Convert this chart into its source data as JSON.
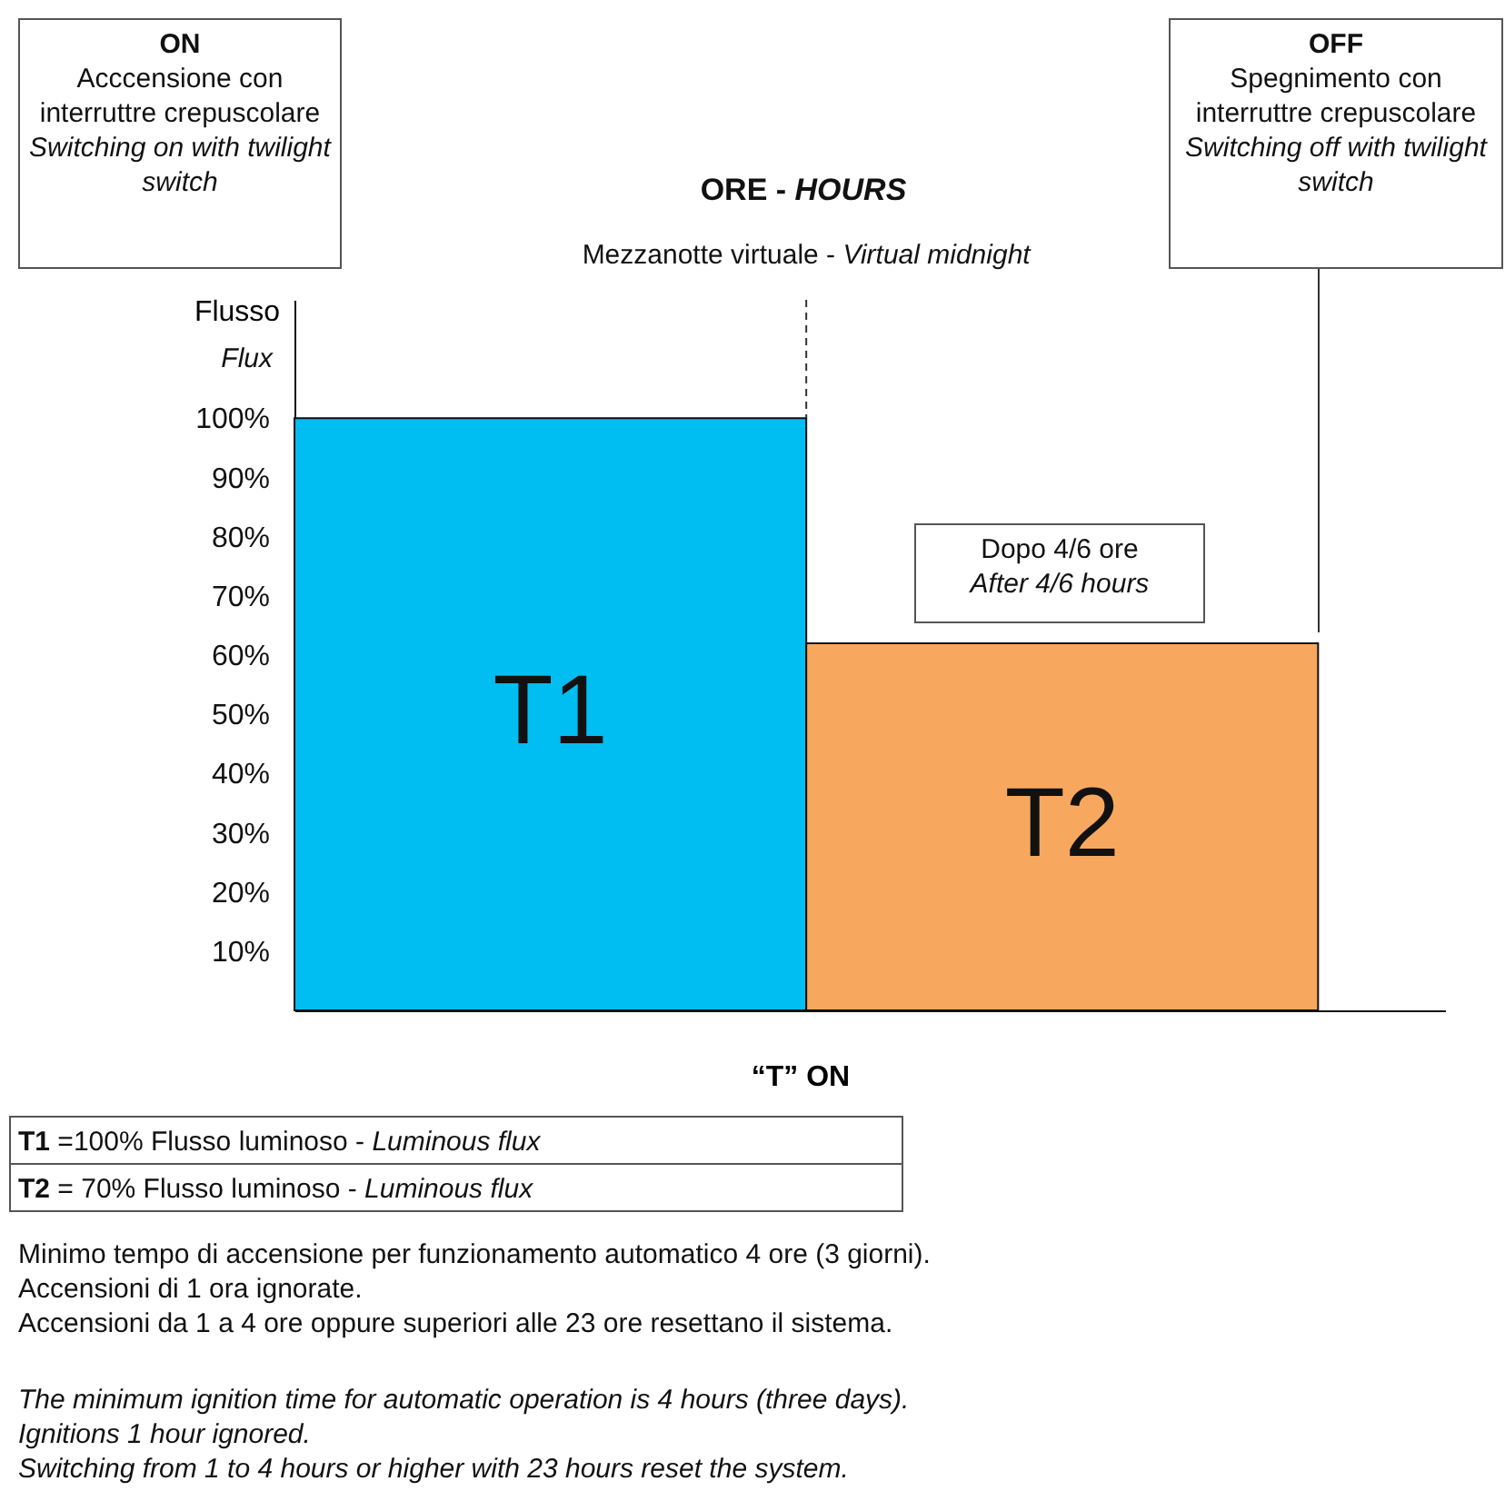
{
  "chart_data": {
    "type": "bar",
    "title": "ORE - HOURS",
    "xlabel": "“T” ON",
    "ylabel": "Flusso",
    "categories": [
      "T1",
      "T2"
    ],
    "series": [
      {
        "colors": [
          "#00bdf2",
          "#f7a85e"
        ],
        "values": [
          100,
          62
        ]
      }
    ],
    "ylim": [
      0,
      120
    ],
    "yticks": [
      {
        "value": 10,
        "label": "10%"
      },
      {
        "value": 20,
        "label": "20%"
      },
      {
        "value": 30,
        "label": "30%"
      },
      {
        "value": 40,
        "label": "40%"
      },
      {
        "value": 50,
        "label": "50%"
      },
      {
        "value": 60,
        "label": "60%"
      },
      {
        "value": 70,
        "label": "70%"
      },
      {
        "value": 80,
        "label": "80%"
      },
      {
        "value": 90,
        "label": "90%"
      },
      {
        "value": 100,
        "label": "100%"
      }
    ],
    "tick_labels": "y",
    "grid": false,
    "ref_lines": [
      {
        "axis": "x",
        "value": "T2",
        "label": "Mezzanotte virtuale - Virtual midnight",
        "line_style": "dashed"
      }
    ],
    "annotations": [
      "ON\nAcccensione con interruttre crepuscolare\nSwitching on with twilight switch",
      "OFF\nSpegnimento con interruttre crepuscolare\nSwitching off with twilight switch",
      "Dopo 4/6 ore\nAfter 4/6 hours",
      "Flux",
      "T1 =100% Flusso luminoso - Luminous flux",
      "T2 = 70% Flusso luminoso - Luminous flux",
      "Minimo tempo di accensione per funzionamento automatico 4 ore (3 giorni).\nAccensioni di 1 ora ignorate.\nAccensioni da 1 a 4 ore oppure superiori alle 23 ore resettano il sistema.",
      "The minimum ignition time for automatic operation is 4 hours (three days).\nIgnitions 1 hour ignored.\nSwitching from 1 to 4 hours or higher with 23 hours reset the system."
    ]
  }
}
